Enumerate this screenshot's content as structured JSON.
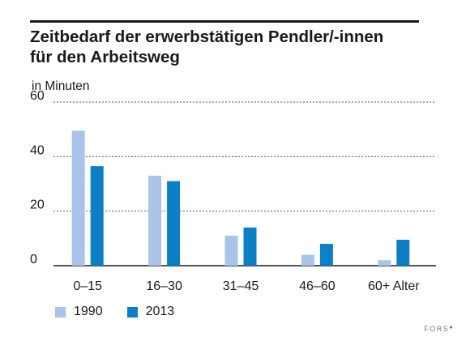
{
  "title": "Zeitbedarf der erwerbstätigen Pendler/-innen\nfür den Arbeitsweg",
  "unit_label": "in Minuten",
  "source": "FORS",
  "colors": {
    "series_1990": "#a9c4e8",
    "series_2013": "#0d7fc4",
    "grid": "#555555",
    "axis": "#1a1a1a"
  },
  "chart_data": {
    "type": "bar",
    "title": "Zeitbedarf der erwerbstätigen Pendler/-innen für den Arbeitsweg",
    "ylabel": "in Minuten",
    "xlabel": "",
    "categories": [
      "0–15",
      "16–30",
      "31–45",
      "46–60",
      "60+ Alter"
    ],
    "series": [
      {
        "name": "1990",
        "values": [
          49.5,
          33,
          11,
          4,
          2
        ]
      },
      {
        "name": "2013",
        "values": [
          36.5,
          31,
          14,
          8,
          9.5
        ]
      }
    ],
    "ylim": [
      0,
      60
    ],
    "yticks": [
      "0",
      "20",
      "40",
      "60"
    ],
    "grid": true,
    "legend_position": "bottom-left"
  }
}
